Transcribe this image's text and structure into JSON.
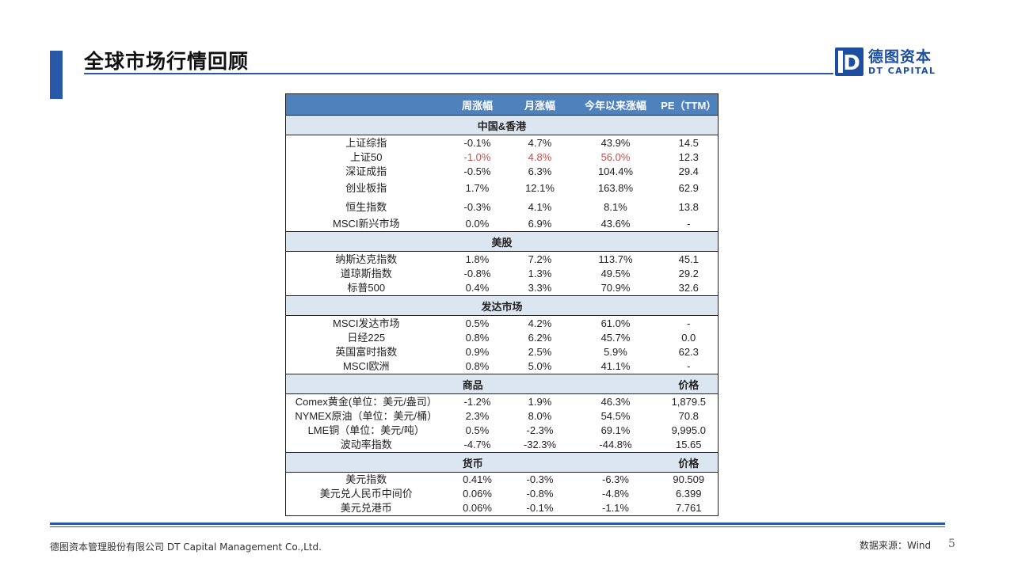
{
  "header": {
    "title": "全球市场行情回顾",
    "logo_cn": "德图资本",
    "logo_en": "DT CAPITAL",
    "logo_letter": "D"
  },
  "table": {
    "columns": [
      "",
      "周涨幅",
      "月涨幅",
      "今年以来涨幅",
      "PE（TTM）"
    ],
    "sections": [
      {
        "title": "中国&香港",
        "rows": [
          {
            "name": "上证综指",
            "cells": [
              "-0.1%",
              "4.7%",
              "43.9%",
              "14.5"
            ]
          },
          {
            "name": "上证50",
            "cells": [
              "-1.0%",
              "4.8%",
              "56.0%",
              "12.3"
            ]
          },
          {
            "name": "深证成指",
            "cells": [
              "-0.5%",
              "6.3%",
              "104.4%",
              "29.4"
            ]
          },
          {
            "name": "创业板指",
            "cells": [
              "1.7%",
              "12.1%",
              "163.8%",
              "62.9"
            ]
          },
          {
            "name": "恒生指数",
            "cells": [
              "-0.3%",
              "4.1%",
              "8.1%",
              "13.8"
            ]
          },
          {
            "name": "MSCI新兴市场",
            "cells": [
              "0.0%",
              "6.9%",
              "43.6%",
              "-"
            ]
          }
        ]
      },
      {
        "title": "美股",
        "rows": [
          {
            "name": "纳斯达克指数",
            "cells": [
              "1.8%",
              "7.2%",
              "113.7%",
              "45.1"
            ]
          },
          {
            "name": "道琼斯指数",
            "cells": [
              "-0.8%",
              "1.3%",
              "49.5%",
              "29.2"
            ]
          },
          {
            "name": "标普500",
            "cells": [
              "0.4%",
              "3.3%",
              "70.9%",
              "32.6"
            ]
          }
        ]
      },
      {
        "title": "发达市场",
        "rows": [
          {
            "name": "MSCI发达市场",
            "cells": [
              "0.5%",
              "4.2%",
              "61.0%",
              "-"
            ]
          },
          {
            "name": "日经225",
            "cells": [
              "0.8%",
              "6.2%",
              "45.7%",
              "0.0"
            ]
          },
          {
            "name": "英国富时指数",
            "cells": [
              "0.9%",
              "2.5%",
              "5.9%",
              "62.3"
            ]
          },
          {
            "name": "MSCI欧洲",
            "cells": [
              "0.8%",
              "5.0%",
              "41.1%",
              "-"
            ]
          }
        ]
      },
      {
        "title": "商品",
        "right": "价格",
        "rows": [
          {
            "name": "Comex黄金(单位：美元/盎司）",
            "cells": [
              "-1.2%",
              "1.9%",
              "46.3%",
              "1,879.5"
            ]
          },
          {
            "name": "NYMEX原油（单位：美元/桶）",
            "cells": [
              "2.3%",
              "8.0%",
              "54.5%",
              "70.8"
            ]
          },
          {
            "name": "LME铜（单位：美元/吨）",
            "cells": [
              "0.5%",
              "-2.3%",
              "69.1%",
              "9,995.0"
            ]
          },
          {
            "name": "波动率指数",
            "cells": [
              "-4.7%",
              "-32.3%",
              "-44.8%",
              "15.65"
            ]
          }
        ]
      },
      {
        "title": "货币",
        "right": "价格",
        "rows": [
          {
            "name": "美元指数",
            "cells": [
              "0.41%",
              "-0.3%",
              "-6.3%",
              "90.509"
            ]
          },
          {
            "name": "美元兑人民币中间价",
            "cells": [
              "0.06%",
              "-0.8%",
              "-4.8%",
              "6.399"
            ]
          },
          {
            "name": "美元兑港币",
            "cells": [
              "0.06%",
              "-0.1%",
              "-1.1%",
              "7.761"
            ]
          }
        ]
      }
    ]
  },
  "footer": {
    "company": "德图资本管理股份有限公司  DT Capital  Management  Co.,Ltd.",
    "source": "数据来源：Wind",
    "page": "5"
  },
  "colors": {
    "accent": "#2a58a8",
    "table_header": "#4f81bd",
    "section_fill": "#dce6f1",
    "highlight_red": "#c0504d"
  }
}
